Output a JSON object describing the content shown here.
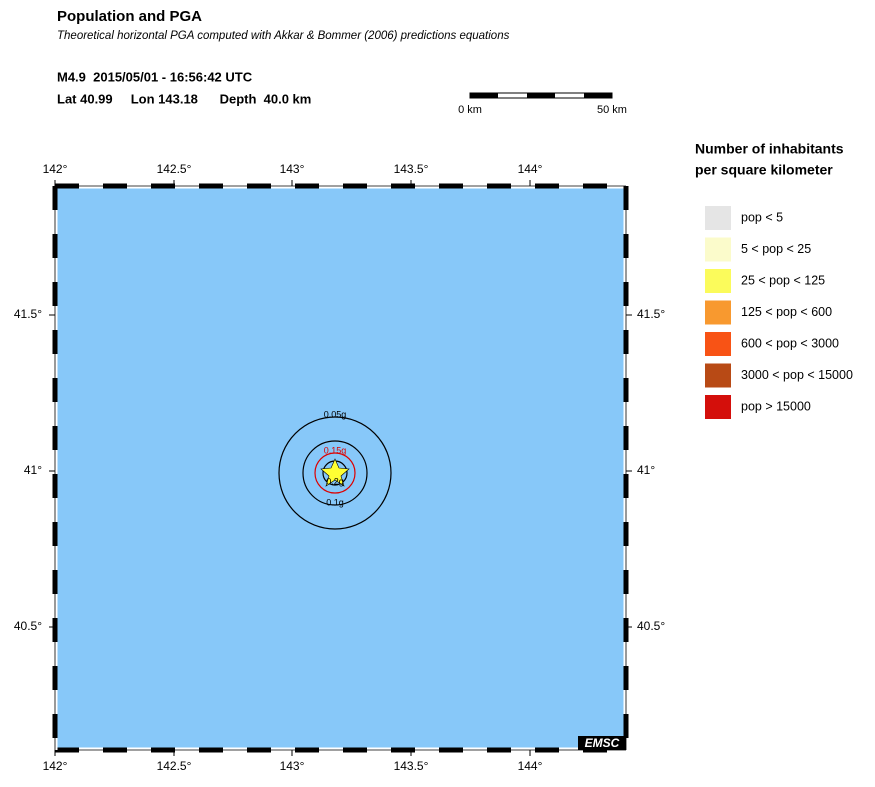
{
  "header": {
    "title": "Population and PGA",
    "subtitle": "Theoretical horizontal PGA computed with Akkar & Bommer (2006) predictions equations",
    "event": "M4.9  2015/05/01 - 16:56:42 UTC",
    "location": "Lat 40.99     Lon 143.18      Depth  40.0 km"
  },
  "scale_bar": {
    "start": "0 km",
    "end": "50 km"
  },
  "map": {
    "lon_labels": [
      "142°",
      "142.5°",
      "143°",
      "143.5°",
      "144°"
    ],
    "lat_labels": [
      "41.5°",
      "41°",
      "40.5°"
    ],
    "contours": [
      {
        "label": "0.05g",
        "color": "#000000"
      },
      {
        "label": "0.1g",
        "color": "#000000"
      },
      {
        "label": "0.15g",
        "color": "#dd0000"
      },
      {
        "label": "0.2g",
        "color": "#000000"
      }
    ],
    "sea_color": "#87c8f9",
    "logo": "EMSC"
  },
  "legend": {
    "title_lines": [
      "Number of inhabitants",
      "per square kilometer"
    ],
    "items": [
      {
        "label": "pop < 5",
        "color": "#e5e5e5"
      },
      {
        "label": "5 < pop < 25",
        "color": "#fbfbcb"
      },
      {
        "label": "25 < pop < 125",
        "color": "#fbfb5b"
      },
      {
        "label": "125 < pop < 600",
        "color": "#f8992f"
      },
      {
        "label": "600 < pop < 3000",
        "color": "#f85315"
      },
      {
        "label": "3000 < pop < 15000",
        "color": "#b84a15"
      },
      {
        "label": "pop > 15000",
        "color": "#d40f0b"
      }
    ]
  }
}
